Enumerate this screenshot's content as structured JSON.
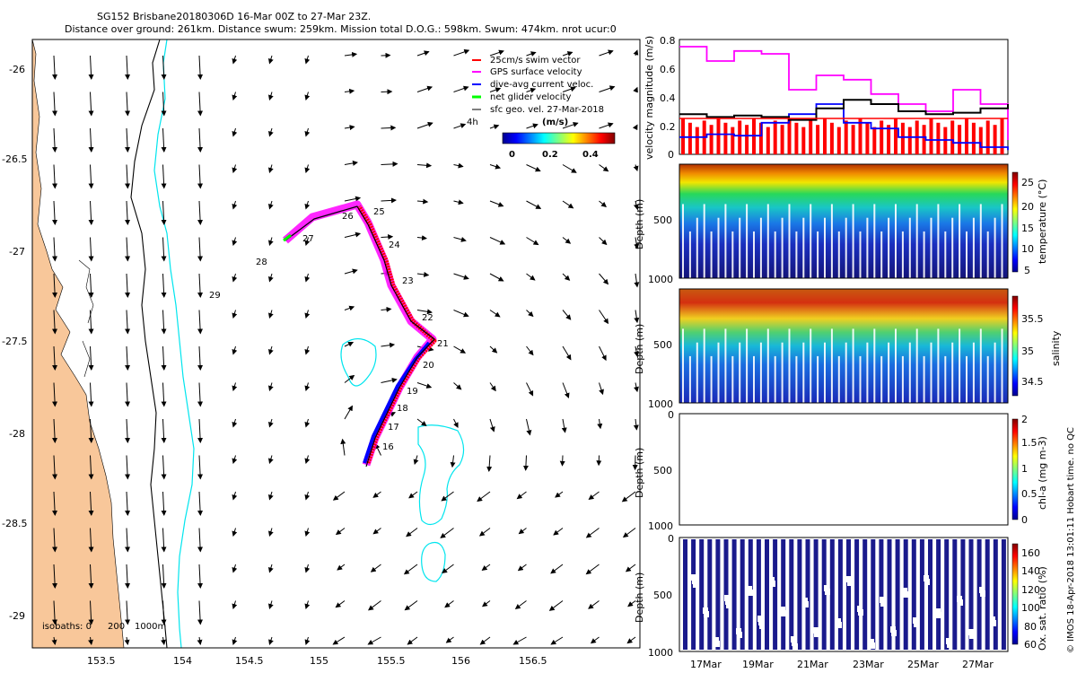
{
  "header": {
    "title_line1": "SG152 Brisbane20180306D 16-Mar 00Z to 27-Mar 23Z.",
    "title_line2": "Distance over ground: 261km. Distance swum: 259km. Mission total D.O.G.: 598km. Swum: 474km. nrot ucur:0"
  },
  "map": {
    "x_ticks": [
      "153.5",
      "154",
      "154.5",
      "155",
      "155.5",
      "156",
      "156.5"
    ],
    "y_ticks": [
      "-26",
      "-26.5",
      "-27",
      "-27.5",
      "-28",
      "-28.5",
      "-29"
    ],
    "legend": [
      {
        "label": "25cm/s swim vector",
        "color": "#ff0000"
      },
      {
        "label": "GPS surface velocity",
        "color": "#ff00ff"
      },
      {
        "label": "dive-avg current veloc.",
        "color": "#0000ff"
      },
      {
        "label": "net glider velocity",
        "color": "#00ff00"
      },
      {
        "label": "sfc geo. vel. 27-Mar-2018",
        "color": "#000000"
      }
    ],
    "legend_note": "4h",
    "colorbar": {
      "label": "(m/s)",
      "ticks": [
        "0",
        "0.2",
        "0.4"
      ]
    },
    "day_labels": [
      "25",
      "24",
      "23",
      "22",
      "21",
      "20",
      "19",
      "18",
      "17",
      "16",
      "26",
      "27",
      "28",
      "29"
    ],
    "isobaths_label": "isobaths: 0",
    "isobath_200": "200",
    "isobath_1000": "1000m"
  },
  "colors": {
    "land": "#f8c79a",
    "isobath_200": "#00e5ee",
    "track_magenta": "#ff00ff",
    "track_red": "#ff0000",
    "track_blue": "#0000ff",
    "net_green": "#00ff00"
  },
  "panels": {
    "velocity": {
      "ylabel": "velocity magnitude (m/s)",
      "yticks": [
        "0",
        "0.2",
        "0.4",
        "0.6",
        "0.8"
      ]
    },
    "temperature": {
      "ylabel": "Depth (m)",
      "yticks": [
        "500",
        "1000"
      ],
      "cb_label": "temperature (°C)",
      "cb_ticks": [
        "25",
        "20",
        "15",
        "10",
        "5"
      ]
    },
    "salinity": {
      "ylabel": "Depth (m)",
      "yticks": [
        "500",
        "1000"
      ],
      "cb_label": "salinity",
      "cb_ticks": [
        "35.5",
        "35",
        "34.5"
      ]
    },
    "chla": {
      "ylabel": "Depth (m)",
      "yticks": [
        "0",
        "500",
        "1000"
      ],
      "cb_label": "chl-a (mg m-3)",
      "cb_ticks": [
        "2",
        "1.5",
        "1",
        "0.5",
        "0"
      ]
    },
    "oxygen": {
      "ylabel": "Depth (m)",
      "yticks": [
        "0",
        "500",
        "1000"
      ],
      "cb_label": "Ox. sat. ratio (%)",
      "cb_ticks": [
        "160",
        "140",
        "120",
        "100",
        "80",
        "60"
      ]
    },
    "time_ticks": [
      "17Mar",
      "19Mar",
      "21Mar",
      "23Mar",
      "25Mar",
      "27Mar"
    ]
  },
  "copyright": "© IMOS 18-Apr-2018 13:01:11 Hobart time. no QC",
  "chart_data": [
    {
      "type": "scatter",
      "title": "SG152 Brisbane20180306D 16-Mar 00Z to 27-Mar 23Z.",
      "xlabel": "",
      "ylabel": "",
      "xlim": [
        153.2,
        156.85
      ],
      "ylim": [
        -29.2,
        -25.85
      ],
      "series": [
        {
          "name": "glider track",
          "x": [
            155.1,
            155.15,
            155.28,
            155.37,
            155.43,
            155.58,
            155.44,
            155.31,
            155.25,
            155.06,
            154.88,
            154.65
          ],
          "y": [
            -28.22,
            -28.02,
            -27.82,
            -27.64,
            -27.48,
            -27.5,
            -27.36,
            -27.14,
            -26.94,
            -26.75,
            -26.8,
            -26.93
          ]
        }
      ],
      "annotations": [
        "25",
        "24",
        "23",
        "22",
        "21",
        "20",
        "19",
        "18",
        "17",
        "16",
        "26",
        "27",
        "28",
        "29"
      ]
    },
    {
      "type": "line",
      "ylabel": "velocity magnitude (m/s)",
      "ylim": [
        0,
        0.8
      ],
      "x": [
        "16Mar",
        "17Mar",
        "18Mar",
        "19Mar",
        "20Mar",
        "21Mar",
        "22Mar",
        "23Mar",
        "24Mar",
        "25Mar",
        "26Mar",
        "27Mar",
        "28Mar"
      ],
      "series": [
        {
          "name": "GPS surface velocity",
          "values": [
            0.75,
            0.65,
            0.72,
            0.7,
            0.45,
            0.55,
            0.52,
            0.42,
            0.35,
            0.3,
            0.45,
            0.35,
            0.1
          ]
        },
        {
          "name": "dive-avg current veloc.",
          "values": [
            0.12,
            0.14,
            0.13,
            0.22,
            0.28,
            0.35,
            0.22,
            0.18,
            0.12,
            0.1,
            0.08,
            0.05,
            0.03
          ]
        },
        {
          "name": "net glider velocity",
          "values": [
            0.28,
            0.26,
            0.27,
            0.26,
            0.24,
            0.32,
            0.38,
            0.35,
            0.3,
            0.28,
            0.29,
            0.32,
            0.35
          ]
        },
        {
          "name": "25cm/s swim vector",
          "values": [
            0.25,
            0.25,
            0.25,
            0.25,
            0.25,
            0.25,
            0.25,
            0.25,
            0.25,
            0.25,
            0.25,
            0.25,
            0.25
          ]
        }
      ]
    },
    {
      "type": "heatmap",
      "ylabel": "Depth (m)",
      "colorbar_label": "temperature (°C)",
      "depth": [
        0,
        100,
        200,
        300,
        400,
        500,
        600,
        700,
        800,
        900,
        1000
      ],
      "values": [
        26,
        25,
        22,
        18,
        15,
        12,
        10,
        8,
        7,
        6,
        5
      ],
      "color_range": [
        5,
        26
      ]
    },
    {
      "type": "heatmap",
      "ylabel": "Depth (m)",
      "colorbar_label": "salinity",
      "depth": [
        0,
        100,
        200,
        300,
        400,
        500,
        600,
        700,
        800,
        900,
        1000
      ],
      "values": [
        35.55,
        35.7,
        35.65,
        35.4,
        35.05,
        34.8,
        34.6,
        34.5,
        34.45,
        34.45,
        34.5
      ],
      "color_range": [
        34.3,
        35.8
      ]
    },
    {
      "type": "heatmap",
      "ylabel": "Depth (m)",
      "colorbar_label": "chl-a (mg m-3)",
      "ylim": [
        0,
        1000
      ],
      "values": [],
      "color_range": [
        0,
        2
      ]
    },
    {
      "type": "heatmap",
      "ylabel": "Depth (m)",
      "colorbar_label": "Ox. sat. ratio (%)",
      "ylim": [
        0,
        1000
      ],
      "values": [
        60,
        60,
        60
      ],
      "color_range": [
        60,
        165
      ]
    }
  ]
}
